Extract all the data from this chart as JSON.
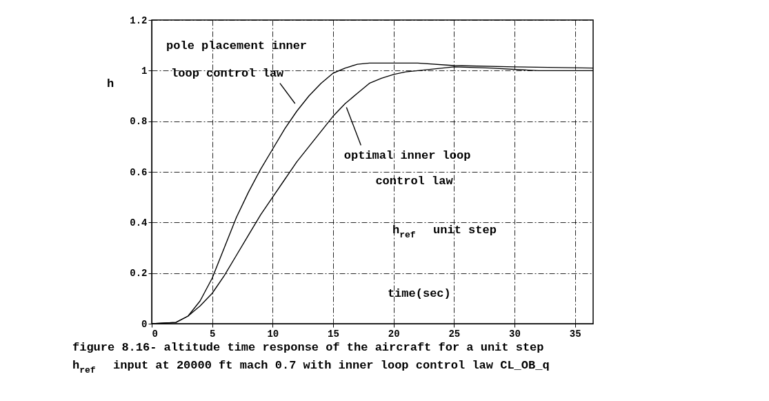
{
  "chart_data": {
    "type": "line",
    "ylabel": "h",
    "xlabel": "time(sec)",
    "annotations": [
      "h$_{ref}$ unit step",
      "figure 8.16- altitude time response of the aircraft for a unit step h$_{ref}$ input at 20000 ft mach 0.7 with inner loop control law CL_OB_q"
    ],
    "xlim": [
      0,
      36.5
    ],
    "xticks": [
      0,
      5,
      10,
      15,
      20,
      25,
      30,
      35
    ],
    "ylim": [
      0,
      1.2
    ],
    "yticks": [
      0,
      0.2,
      0.4,
      0.6,
      0.8,
      1,
      1.2
    ],
    "grid": true,
    "legend": false,
    "line_style": "solid",
    "marker": "none",
    "series": [
      {
        "name": "pole placement inner loop control law",
        "color": "#000000",
        "x": [
          0,
          2,
          3,
          4,
          5,
          6,
          7,
          8,
          9,
          10,
          11,
          12,
          13,
          14,
          15,
          16,
          17,
          18,
          20,
          22,
          25,
          30,
          36.5
        ],
        "values": [
          0,
          0.005,
          0.03,
          0.09,
          0.18,
          0.3,
          0.42,
          0.52,
          0.61,
          0.69,
          0.77,
          0.84,
          0.9,
          0.95,
          0.99,
          1.01,
          1.025,
          1.03,
          1.03,
          1.03,
          1.02,
          1.015,
          1.01
        ]
      },
      {
        "name": "optimal inner loop control law",
        "color": "#000000",
        "x": [
          0,
          2,
          3,
          4,
          5,
          6,
          7,
          8,
          9,
          10,
          11,
          12,
          13,
          14,
          15,
          16,
          17,
          18,
          19,
          20,
          21,
          22,
          25,
          28,
          32,
          36.5
        ],
        "values": [
          0,
          0.005,
          0.03,
          0.07,
          0.12,
          0.19,
          0.27,
          0.35,
          0.43,
          0.5,
          0.57,
          0.64,
          0.7,
          0.76,
          0.82,
          0.87,
          0.91,
          0.95,
          0.97,
          0.985,
          0.995,
          1.0,
          1.015,
          1.01,
          1.0,
          1.0
        ]
      }
    ]
  }
}
